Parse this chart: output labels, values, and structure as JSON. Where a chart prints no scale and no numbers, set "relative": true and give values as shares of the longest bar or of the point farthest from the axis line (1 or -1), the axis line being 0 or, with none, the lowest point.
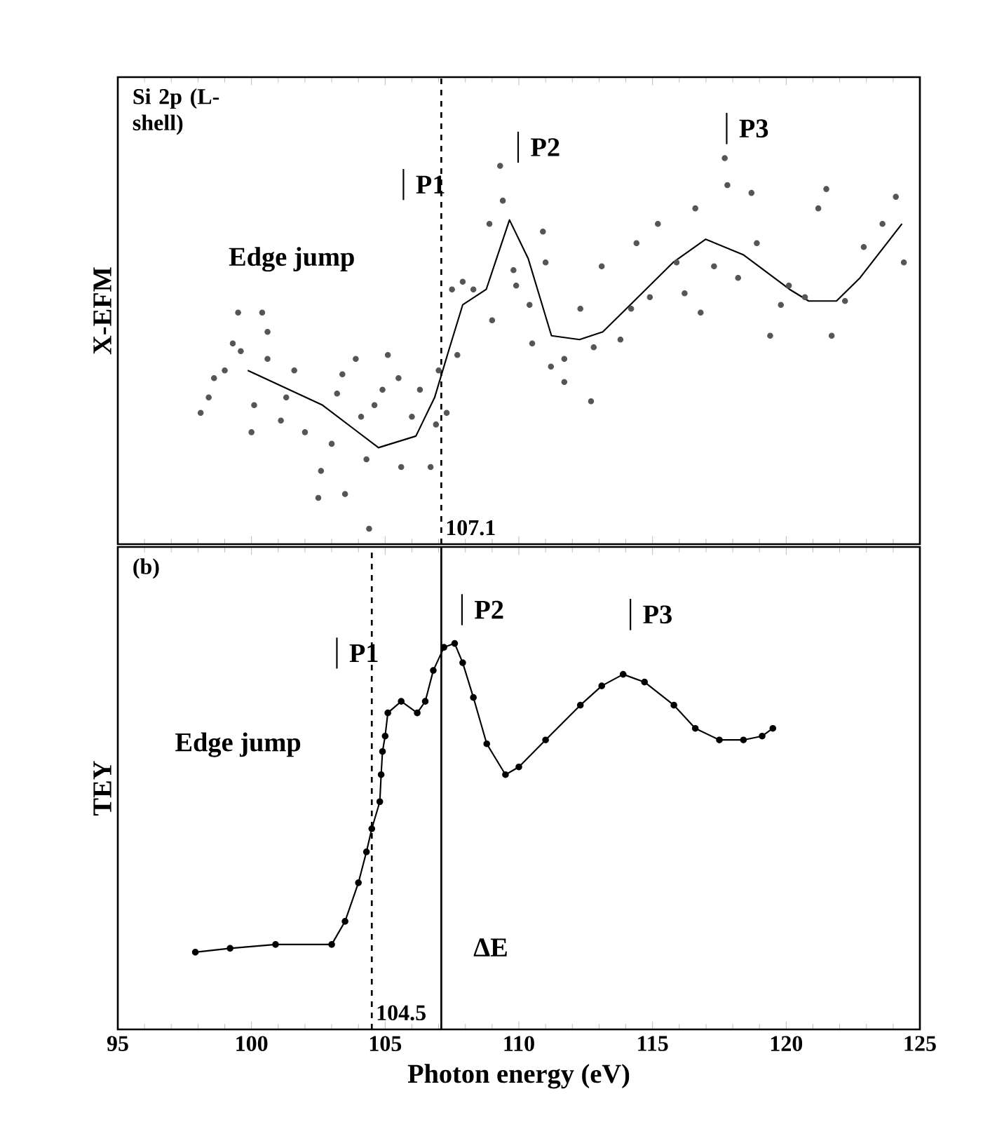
{
  "chart_data": [
    {
      "type": "scatter",
      "relative": true,
      "ylabel": "X-EFM",
      "xlim": [
        95,
        125
      ],
      "xticks": [
        95,
        100,
        105,
        110,
        115,
        120,
        125
      ],
      "tick_labels": false,
      "annotations": [
        "Si 2p (L-shell)",
        "Edge jump",
        "P1",
        "P2",
        "P3"
      ],
      "ref_lines": [
        {
          "axis": "x",
          "value": 107.1,
          "label": "107.1",
          "line_style": "dashed"
        }
      ],
      "series": [
        {
          "marker": "circle",
          "color": "#555555",
          "x": [
            98.1,
            98.4,
            98.6,
            99.0,
            99.3,
            99.5,
            99.6,
            100.0,
            100.1,
            100.4,
            100.6,
            100.6,
            101.1,
            101.3,
            101.6,
            102.0,
            102.5,
            102.6,
            103.0,
            103.2,
            103.4,
            103.5,
            103.9,
            104.1,
            104.3,
            104.4,
            104.6,
            104.9,
            105.1,
            105.5,
            105.6,
            106.0,
            106.3,
            106.7,
            106.9,
            107.0,
            107.3,
            107.5,
            107.7,
            107.9,
            108.3,
            108.9,
            109.0,
            109.4,
            109.3,
            109.8,
            109.9,
            110.4,
            110.5,
            110.9,
            111.0,
            111.2,
            111.7,
            111.7,
            112.3,
            112.7,
            112.8,
            113.1,
            113.8,
            114.2,
            114.4,
            114.9,
            115.2,
            115.9,
            116.2,
            116.6,
            116.8,
            117.3,
            117.7,
            117.8,
            118.2,
            118.7,
            118.9,
            119.4,
            119.8,
            120.1,
            120.7,
            121.2,
            121.5,
            121.7,
            122.2,
            122.9,
            123.6,
            124.1,
            124.4
          ],
          "values": [
            0.34,
            0.38,
            0.43,
            0.45,
            0.52,
            0.6,
            0.5,
            0.29,
            0.36,
            0.6,
            0.55,
            0.48,
            0.32,
            0.38,
            0.45,
            0.29,
            0.12,
            0.19,
            0.26,
            0.39,
            0.44,
            0.13,
            0.48,
            0.33,
            0.22,
            0.04,
            0.36,
            0.4,
            0.49,
            0.43,
            0.2,
            0.33,
            0.4,
            0.2,
            0.31,
            0.45,
            0.34,
            0.66,
            0.49,
            0.68,
            0.66,
            0.83,
            0.58,
            0.89,
            0.98,
            0.71,
            0.67,
            0.62,
            0.52,
            0.81,
            0.73,
            0.46,
            0.42,
            0.48,
            0.61,
            0.37,
            0.51,
            0.72,
            0.53,
            0.61,
            0.78,
            0.64,
            0.83,
            0.73,
            0.65,
            0.87,
            0.6,
            0.72,
            1.0,
            0.93,
            0.69,
            0.91,
            0.78,
            0.54,
            0.62,
            0.67,
            0.64,
            0.87,
            0.92,
            0.54,
            0.63,
            0.77,
            0.83,
            0.9,
            0.73
          ]
        },
        {
          "type": "line",
          "marker": "none",
          "line_style": "solid",
          "color": "#000000",
          "x": [
            99.86,
            102.66,
            104.75,
            106.15,
            106.85,
            107.37,
            107.9,
            108.78,
            109.65,
            110.35,
            111.22,
            112.27,
            113.14,
            114.02,
            115.77,
            116.99,
            118.39,
            120.13,
            120.84,
            121.88,
            122.76,
            124.33
          ],
          "values": [
            0.45,
            0.36,
            0.25,
            0.28,
            0.38,
            0.5,
            0.62,
            0.66,
            0.84,
            0.74,
            0.54,
            0.53,
            0.55,
            0.61,
            0.73,
            0.79,
            0.75,
            0.66,
            0.63,
            0.63,
            0.69,
            0.83
          ]
        }
      ]
    },
    {
      "type": "line",
      "relative": true,
      "ylabel": "TEY",
      "xlabel": "Photon energy (eV)",
      "xlim": [
        95,
        125
      ],
      "xticks": [
        95,
        100,
        105,
        110,
        115,
        120,
        125
      ],
      "tick_labels": "x",
      "annotations": [
        "(b)",
        "Edge jump",
        "P1",
        "P2",
        "P3",
        "ΔE"
      ],
      "ref_lines": [
        {
          "axis": "x",
          "value": 104.5,
          "label": "104.5",
          "line_style": "dashed"
        },
        {
          "axis": "x",
          "value": 107.1,
          "line_style": "solid"
        }
      ],
      "series": [
        {
          "marker": "circle",
          "line_style": "solid",
          "color": "#000000",
          "x": [
            97.9,
            99.2,
            100.9,
            103.0,
            103.5,
            104.0,
            104.3,
            104.5,
            104.8,
            104.85,
            104.9,
            105.0,
            105.1,
            105.6,
            106.2,
            106.5,
            106.8,
            107.2,
            107.6,
            107.9,
            108.3,
            108.8,
            109.5,
            110.0,
            111.0,
            112.3,
            113.1,
            113.9,
            114.7,
            115.8,
            116.6,
            117.5,
            118.4,
            119.1,
            119.5
          ],
          "values": [
            0.2,
            0.21,
            0.22,
            0.22,
            0.28,
            0.38,
            0.46,
            0.52,
            0.59,
            0.66,
            0.72,
            0.76,
            0.82,
            0.85,
            0.82,
            0.85,
            0.93,
            0.99,
            1.0,
            0.95,
            0.86,
            0.74,
            0.66,
            0.68,
            0.75,
            0.84,
            0.89,
            0.92,
            0.9,
            0.84,
            0.78,
            0.75,
            0.75,
            0.76,
            0.78
          ]
        }
      ]
    }
  ]
}
